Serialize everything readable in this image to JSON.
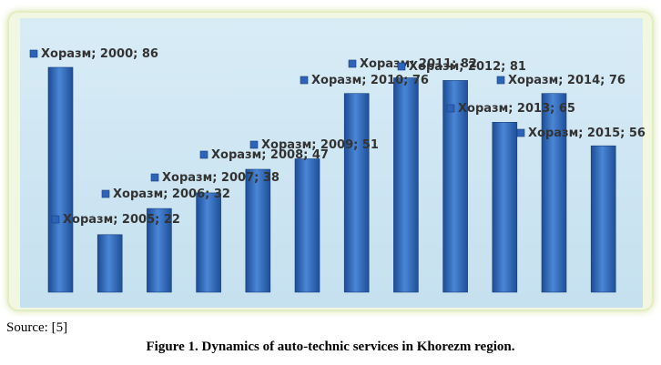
{
  "chart_data": {
    "type": "bar",
    "title": "",
    "xlabel": "",
    "ylabel": "",
    "ylim": [
      0,
      90
    ],
    "grid": false,
    "series": [
      {
        "name": "Хоразм",
        "color": "#2e63b8",
        "categories": [
          "2000",
          "2005",
          "2006",
          "2007",
          "2008",
          "2009",
          "2010",
          "2011",
          "2012",
          "2013",
          "2014",
          "2015"
        ],
        "values": [
          86,
          22,
          32,
          38,
          47,
          51,
          76,
          82,
          81,
          65,
          76,
          56
        ],
        "data_labels": [
          "Хоразм; 2000; 86",
          "Хоразм; 2005; 22",
          "Хоразм; 2006; 32",
          "Хоразм; 2007; 38",
          "Хоразм; 2008; 47",
          "Хоразм; 2009; 51",
          "Хоразм; 2010; 76",
          "Хоразм; 2011; 82",
          "Хоразм; 2012; 81",
          "Хоразм; 2013; 65",
          "Хоразм; 2014; 76",
          "Хоразм; 2015; 56"
        ]
      }
    ]
  },
  "source": "Source: [5]",
  "caption": "Figure 1. Dynamics of auto-technic services in Khorezm region."
}
